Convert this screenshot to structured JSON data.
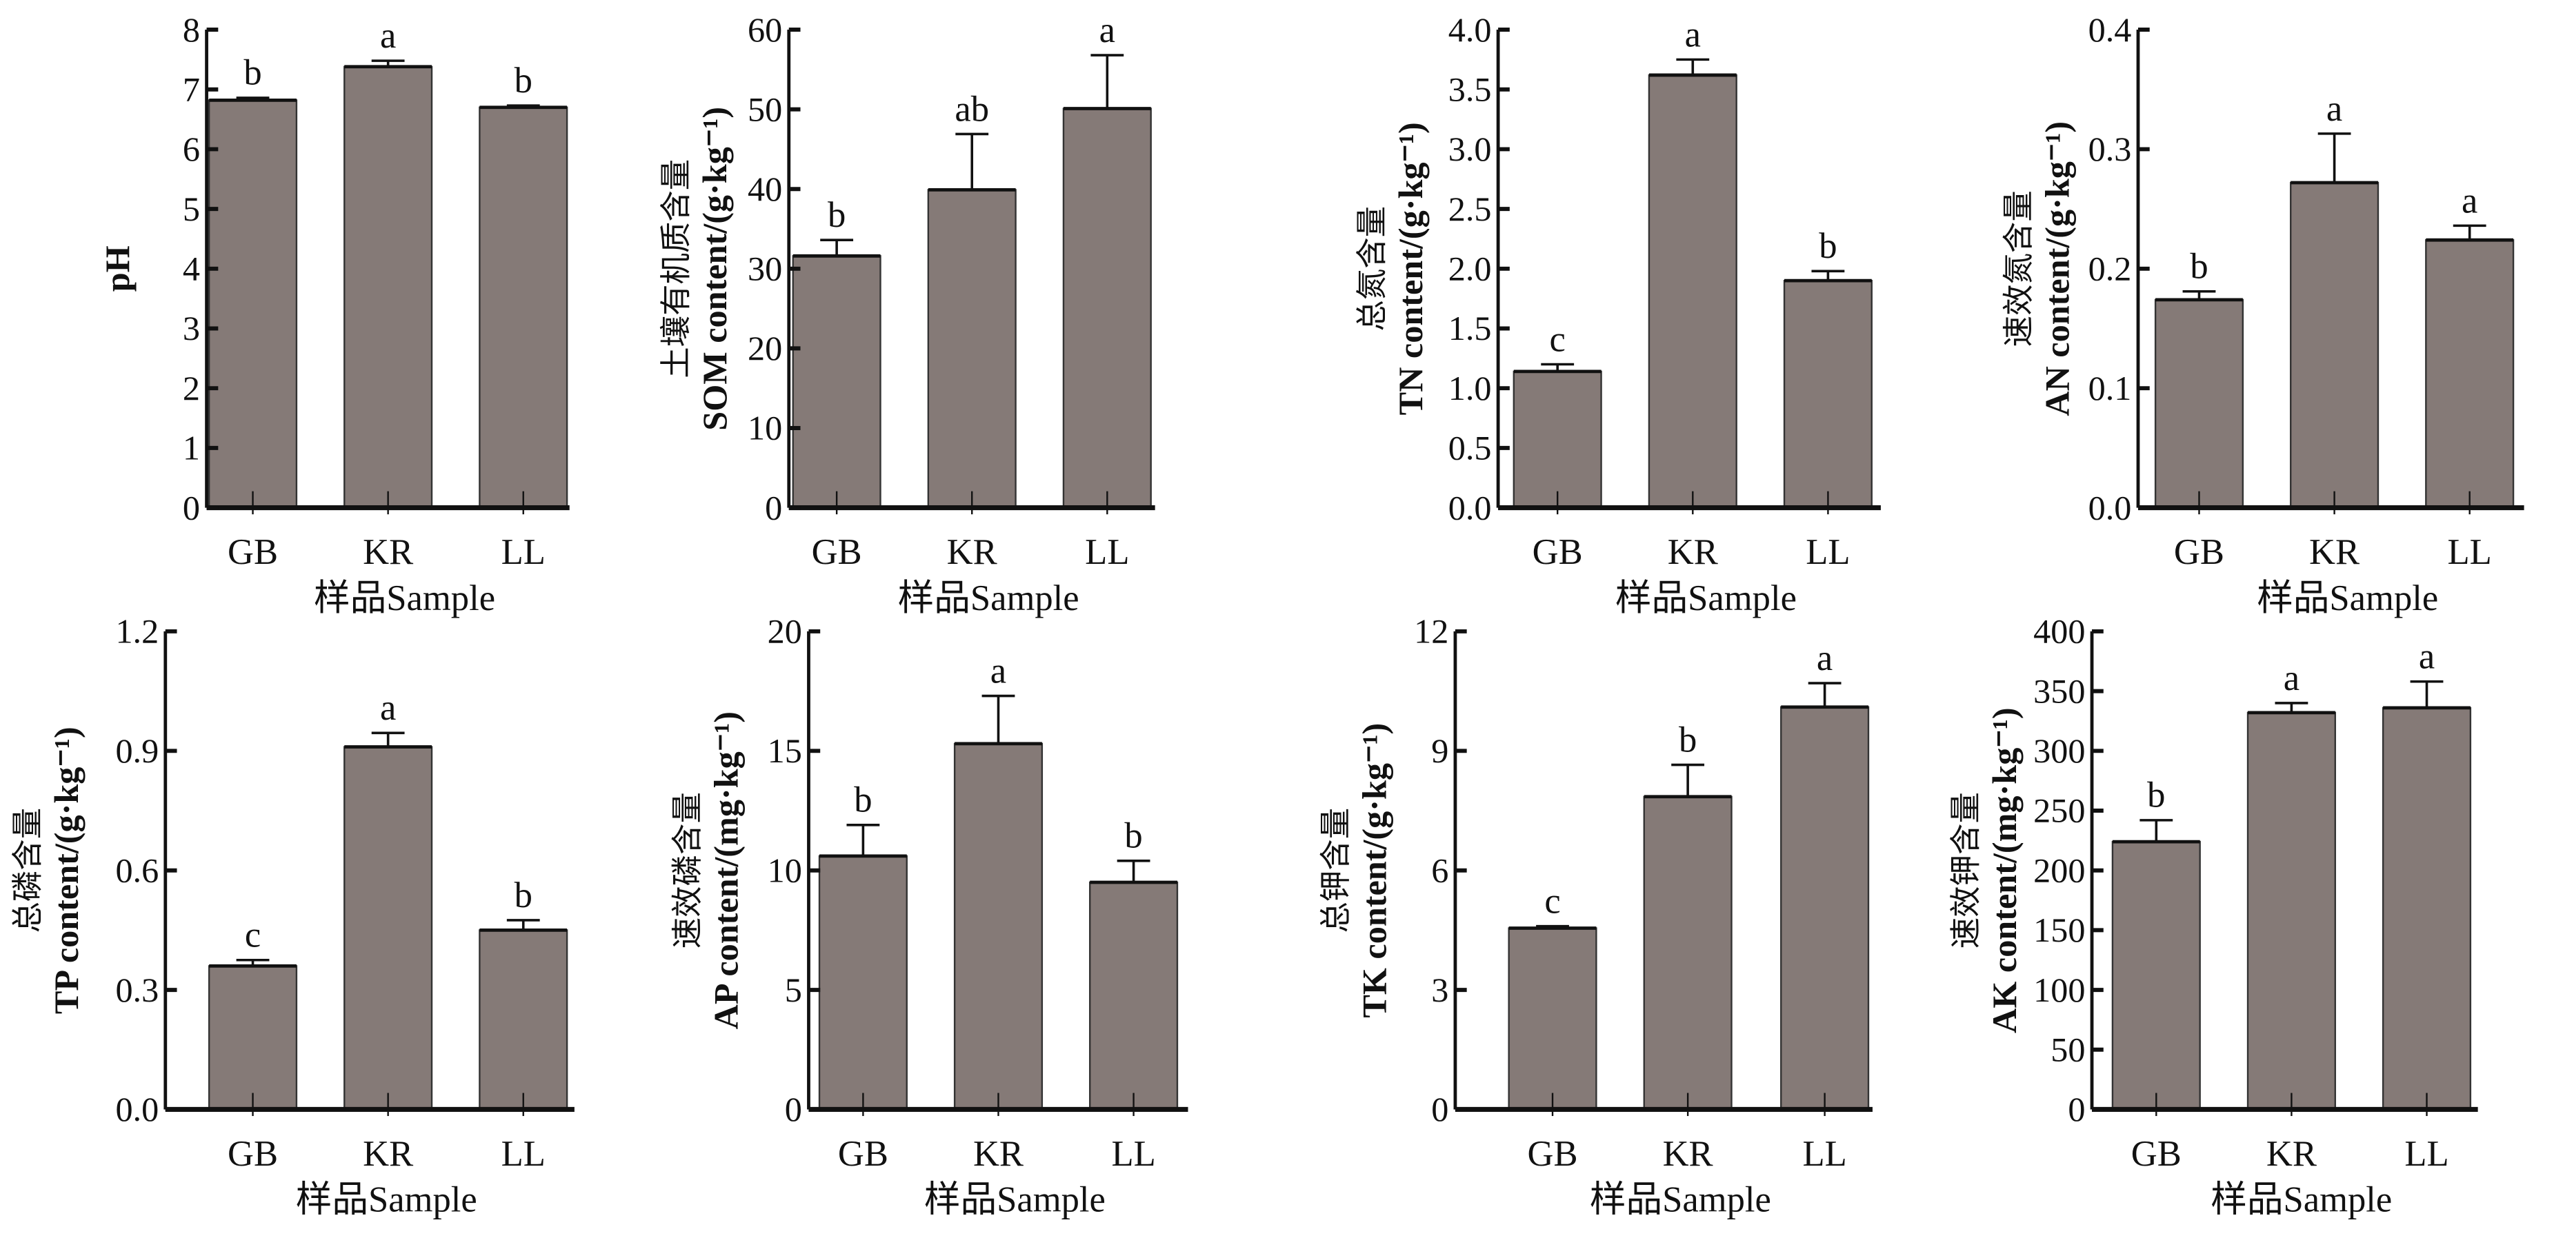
{
  "style": {
    "bar_color": "#857a77",
    "axis_color": "#111111"
  },
  "chart_data": [
    {
      "type": "bar",
      "ylabel_cn": "",
      "ylabel_en": "pH",
      "xlabel": "样品Sample",
      "categories": [
        "GB",
        "KR",
        "LL"
      ],
      "values": [
        6.82,
        7.38,
        6.7
      ],
      "errors": [
        0.04,
        0.1,
        0.03
      ],
      "letters": [
        "b",
        "a",
        "b"
      ],
      "ylim": [
        0,
        8
      ],
      "yticks": [
        "0",
        "1",
        "2",
        "3",
        "4",
        "5",
        "6",
        "7",
        "8"
      ]
    },
    {
      "type": "bar",
      "ylabel_cn": "土壤有机质含量",
      "ylabel_en": "SOM content/(g·kg⁻¹)",
      "xlabel": "样品Sample",
      "categories": [
        "GB",
        "KR",
        "LL"
      ],
      "values": [
        31.6,
        39.9,
        50.1
      ],
      "errors": [
        2.0,
        7.0,
        6.7
      ],
      "letters": [
        "b",
        "ab",
        "a"
      ],
      "ylim": [
        0,
        60
      ],
      "yticks": [
        "0",
        "10",
        "20",
        "30",
        "40",
        "50",
        "60"
      ]
    },
    {
      "type": "bar",
      "ylabel_cn": "总氮含量",
      "ylabel_en": "TN content/(g·kg⁻¹)",
      "xlabel": "样品Sample",
      "categories": [
        "GB",
        "KR",
        "LL"
      ],
      "values": [
        1.14,
        3.62,
        1.9
      ],
      "errors": [
        0.06,
        0.13,
        0.08
      ],
      "letters": [
        "c",
        "a",
        "b"
      ],
      "ylim": [
        0,
        4
      ],
      "yticks": [
        "0.0",
        "0.5",
        "1.0",
        "1.5",
        "2.0",
        "2.5",
        "3.0",
        "3.5",
        "4.0"
      ]
    },
    {
      "type": "bar",
      "ylabel_cn": "速效氮含量",
      "ylabel_en": "AN content/(g·kg⁻¹)",
      "xlabel": "样品Sample",
      "categories": [
        "GB",
        "KR",
        "LL"
      ],
      "values": [
        0.174,
        0.272,
        0.224
      ],
      "errors": [
        0.007,
        0.041,
        0.012
      ],
      "letters": [
        "b",
        "a",
        "a"
      ],
      "ylim": [
        0,
        0.4
      ],
      "yticks": [
        "0.0",
        "0.1",
        "0.2",
        "0.3",
        "0.4"
      ]
    },
    {
      "type": "bar",
      "ylabel_cn": "总磷含量",
      "ylabel_en": "TP content/(g·kg⁻¹)",
      "xlabel": "样品Sample",
      "categories": [
        "GB",
        "KR",
        "LL"
      ],
      "values": [
        0.36,
        0.91,
        0.45
      ],
      "errors": [
        0.015,
        0.035,
        0.025
      ],
      "letters": [
        "c",
        "a",
        "b"
      ],
      "ylim": [
        0,
        1.2
      ],
      "yticks": [
        "0.0",
        "0.3",
        "0.6",
        "0.9",
        "1.2"
      ]
    },
    {
      "type": "bar",
      "ylabel_cn": "速效磷含量",
      "ylabel_en": "AP content/(mg·kg⁻¹)",
      "xlabel": "样品Sample",
      "categories": [
        "GB",
        "KR",
        "LL"
      ],
      "values": [
        10.6,
        15.3,
        9.5
      ],
      "errors": [
        1.3,
        2.0,
        0.9
      ],
      "letters": [
        "b",
        "a",
        "b"
      ],
      "ylim": [
        0,
        20
      ],
      "yticks": [
        "0",
        "5",
        "10",
        "15",
        "20"
      ]
    },
    {
      "type": "bar",
      "ylabel_cn": "总钾含量",
      "ylabel_en": "TK content/(g·kg⁻¹)",
      "xlabel": "样品Sample",
      "categories": [
        "GB",
        "KR",
        "LL"
      ],
      "values": [
        4.55,
        7.85,
        10.1
      ],
      "errors": [
        0.05,
        0.8,
        0.6
      ],
      "letters": [
        "c",
        "b",
        "a"
      ],
      "ylim": [
        0,
        12
      ],
      "yticks": [
        "0",
        "3",
        "6",
        "9",
        "12"
      ]
    },
    {
      "type": "bar",
      "ylabel_cn": "速效钾含量",
      "ylabel_en": "AK content/(mg·kg⁻¹)",
      "xlabel": "样品Sample",
      "categories": [
        "GB",
        "KR",
        "LL"
      ],
      "values": [
        224,
        332,
        336
      ],
      "errors": [
        18,
        8,
        22
      ],
      "letters": [
        "b",
        "a",
        "a"
      ],
      "ylim": [
        0,
        400
      ],
      "yticks": [
        "0",
        "50",
        "100",
        "150",
        "200",
        "250",
        "300",
        "350",
        "400"
      ]
    }
  ]
}
